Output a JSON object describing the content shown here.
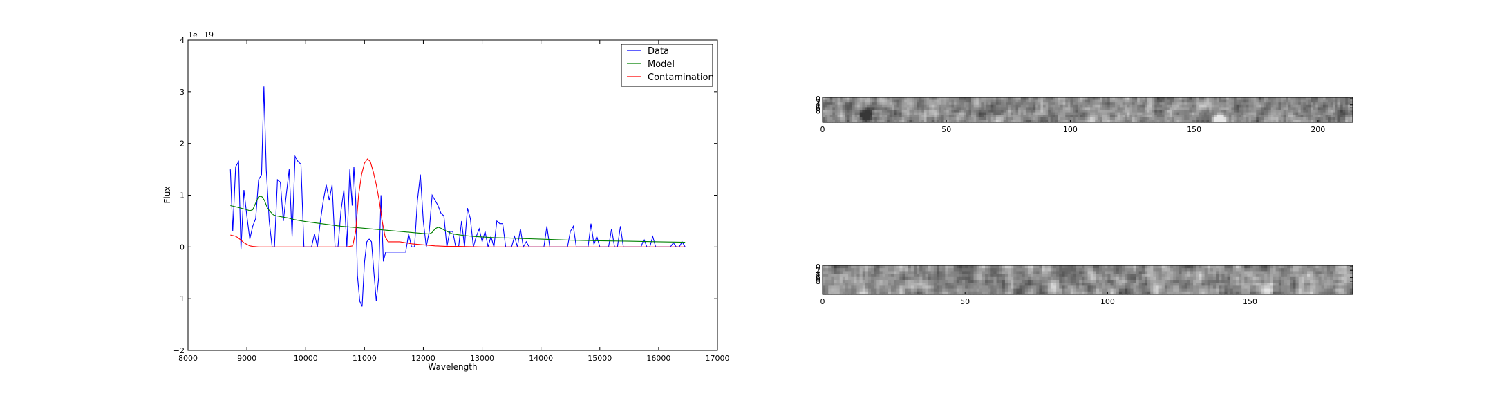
{
  "chart_data": [
    {
      "type": "line",
      "xlabel": "Wavelength",
      "ylabel": "Flux",
      "offset_text": "1e−19",
      "xlim": [
        8000,
        17000
      ],
      "ylim": [
        -2,
        4
      ],
      "x_ticks": [
        8000,
        9000,
        10000,
        11000,
        12000,
        13000,
        14000,
        15000,
        16000,
        17000
      ],
      "y_ticks": [
        -2,
        -1,
        0,
        1,
        2,
        3,
        4
      ],
      "y_tick_labels": [
        "−2",
        "−1",
        "0",
        "1",
        "2",
        "3",
        "4"
      ],
      "grid": false,
      "legend_position": "top-right",
      "series": [
        {
          "name": "Data",
          "color": "#0000ff",
          "points": [
            [
              8720,
              1.5
            ],
            [
              8760,
              0.3
            ],
            [
              8810,
              1.55
            ],
            [
              8860,
              1.65
            ],
            [
              8900,
              -0.05
            ],
            [
              8950,
              1.1
            ],
            [
              9000,
              0.6
            ],
            [
              9050,
              0.15
            ],
            [
              9100,
              0.4
            ],
            [
              9150,
              0.55
            ],
            [
              9200,
              1.3
            ],
            [
              9250,
              1.4
            ],
            [
              9290,
              3.1
            ],
            [
              9330,
              1.5
            ],
            [
              9380,
              0.5
            ],
            [
              9430,
              0.0
            ],
            [
              9470,
              0.0
            ],
            [
              9520,
              1.3
            ],
            [
              9570,
              1.25
            ],
            [
              9620,
              0.5
            ],
            [
              9670,
              1.0
            ],
            [
              9720,
              1.5
            ],
            [
              9770,
              0.2
            ],
            [
              9820,
              1.75
            ],
            [
              9870,
              1.65
            ],
            [
              9920,
              1.6
            ],
            [
              9970,
              0.0
            ],
            [
              10050,
              0.0
            ],
            [
              10100,
              0.0
            ],
            [
              10150,
              0.25
            ],
            [
              10200,
              0.0
            ],
            [
              10250,
              0.5
            ],
            [
              10300,
              0.9
            ],
            [
              10350,
              1.2
            ],
            [
              10400,
              0.9
            ],
            [
              10450,
              1.2
            ],
            [
              10500,
              0.0
            ],
            [
              10550,
              0.0
            ],
            [
              10600,
              0.7
            ],
            [
              10650,
              1.1
            ],
            [
              10700,
              0.0
            ],
            [
              10750,
              1.5
            ],
            [
              10790,
              0.8
            ],
            [
              10820,
              1.55
            ],
            [
              10850,
              0.9
            ],
            [
              10880,
              -0.55
            ],
            [
              10920,
              -1.05
            ],
            [
              10960,
              -1.15
            ],
            [
              11000,
              -0.3
            ],
            [
              11040,
              0.1
            ],
            [
              11080,
              0.15
            ],
            [
              11120,
              0.1
            ],
            [
              11160,
              -0.5
            ],
            [
              11200,
              -1.05
            ],
            [
              11240,
              -0.6
            ],
            [
              11280,
              1.0
            ],
            [
              11320,
              -0.28
            ],
            [
              11360,
              -0.1
            ],
            [
              11400,
              -0.1
            ],
            [
              11500,
              -0.1
            ],
            [
              11600,
              -0.1
            ],
            [
              11700,
              -0.1
            ],
            [
              11750,
              0.25
            ],
            [
              11800,
              0.0
            ],
            [
              11850,
              0.0
            ],
            [
              11900,
              0.9
            ],
            [
              11950,
              1.4
            ],
            [
              12000,
              0.5
            ],
            [
              12050,
              0.0
            ],
            [
              12100,
              0.3
            ],
            [
              12150,
              1.0
            ],
            [
              12200,
              0.9
            ],
            [
              12250,
              0.8
            ],
            [
              12300,
              0.65
            ],
            [
              12350,
              0.6
            ],
            [
              12400,
              0.0
            ],
            [
              12450,
              0.3
            ],
            [
              12500,
              0.3
            ],
            [
              12550,
              0.0
            ],
            [
              12600,
              0.0
            ],
            [
              12650,
              0.5
            ],
            [
              12700,
              0.0
            ],
            [
              12750,
              0.75
            ],
            [
              12800,
              0.55
            ],
            [
              12850,
              0.0
            ],
            [
              12900,
              0.2
            ],
            [
              12950,
              0.35
            ],
            [
              13000,
              0.1
            ],
            [
              13050,
              0.3
            ],
            [
              13100,
              0.0
            ],
            [
              13150,
              0.2
            ],
            [
              13200,
              0.0
            ],
            [
              13250,
              0.5
            ],
            [
              13300,
              0.45
            ],
            [
              13350,
              0.45
            ],
            [
              13400,
              0.0
            ],
            [
              13450,
              0.0
            ],
            [
              13500,
              0.0
            ],
            [
              13550,
              0.2
            ],
            [
              13600,
              0.0
            ],
            [
              13650,
              0.35
            ],
            [
              13700,
              0.0
            ],
            [
              13750,
              0.1
            ],
            [
              13800,
              0.0
            ],
            [
              13900,
              0.0
            ],
            [
              14000,
              0.0
            ],
            [
              14050,
              0.0
            ],
            [
              14100,
              0.4
            ],
            [
              14150,
              0.0
            ],
            [
              14300,
              0.0
            ],
            [
              14450,
              0.0
            ],
            [
              14500,
              0.3
            ],
            [
              14550,
              0.4
            ],
            [
              14600,
              0.0
            ],
            [
              14700,
              0.0
            ],
            [
              14750,
              0.0
            ],
            [
              14800,
              0.0
            ],
            [
              14850,
              0.45
            ],
            [
              14900,
              0.05
            ],
            [
              14950,
              0.2
            ],
            [
              15000,
              0.0
            ],
            [
              15100,
              0.0
            ],
            [
              15150,
              0.0
            ],
            [
              15200,
              0.35
            ],
            [
              15250,
              0.0
            ],
            [
              15300,
              0.0
            ],
            [
              15350,
              0.4
            ],
            [
              15400,
              0.0
            ],
            [
              15500,
              0.0
            ],
            [
              15600,
              0.0
            ],
            [
              15700,
              0.0
            ],
            [
              15750,
              0.15
            ],
            [
              15800,
              0.0
            ],
            [
              15850,
              0.0
            ],
            [
              15900,
              0.2
            ],
            [
              15950,
              0.0
            ],
            [
              16000,
              0.0
            ],
            [
              16100,
              0.0
            ],
            [
              16200,
              0.0
            ],
            [
              16250,
              0.08
            ],
            [
              16300,
              0.0
            ],
            [
              16350,
              0.0
            ],
            [
              16400,
              0.1
            ],
            [
              16450,
              0.0
            ]
          ]
        },
        {
          "name": "Model",
          "color": "#008000",
          "points": [
            [
              8720,
              0.8
            ],
            [
              8800,
              0.78
            ],
            [
              8900,
              0.75
            ],
            [
              9000,
              0.72
            ],
            [
              9050,
              0.7
            ],
            [
              9100,
              0.72
            ],
            [
              9150,
              0.85
            ],
            [
              9200,
              0.97
            ],
            [
              9250,
              0.98
            ],
            [
              9300,
              0.9
            ],
            [
              9350,
              0.75
            ],
            [
              9400,
              0.68
            ],
            [
              9450,
              0.62
            ],
            [
              9500,
              0.6
            ],
            [
              9600,
              0.58
            ],
            [
              9700,
              0.56
            ],
            [
              9800,
              0.53
            ],
            [
              9900,
              0.51
            ],
            [
              10000,
              0.49
            ],
            [
              10200,
              0.46
            ],
            [
              10400,
              0.43
            ],
            [
              10600,
              0.4
            ],
            [
              10800,
              0.38
            ],
            [
              11000,
              0.36
            ],
            [
              11200,
              0.34
            ],
            [
              11400,
              0.32
            ],
            [
              11600,
              0.3
            ],
            [
              11800,
              0.28
            ],
            [
              12000,
              0.26
            ],
            [
              12100,
              0.25
            ],
            [
              12150,
              0.28
            ],
            [
              12200,
              0.35
            ],
            [
              12250,
              0.38
            ],
            [
              12300,
              0.36
            ],
            [
              12350,
              0.33
            ],
            [
              12400,
              0.3
            ],
            [
              12500,
              0.25
            ],
            [
              12700,
              0.22
            ],
            [
              12900,
              0.2
            ],
            [
              13200,
              0.18
            ],
            [
              13500,
              0.17
            ],
            [
              14000,
              0.15
            ],
            [
              14500,
              0.13
            ],
            [
              15000,
              0.12
            ],
            [
              15500,
              0.11
            ],
            [
              16000,
              0.1
            ],
            [
              16450,
              0.09
            ]
          ]
        },
        {
          "name": "Contamination",
          "color": "#ff0000",
          "points": [
            [
              8720,
              0.23
            ],
            [
              8800,
              0.21
            ],
            [
              8850,
              0.18
            ],
            [
              8900,
              0.13
            ],
            [
              8950,
              0.08
            ],
            [
              9000,
              0.05
            ],
            [
              9050,
              0.02
            ],
            [
              9100,
              0.01
            ],
            [
              9200,
              0.0
            ],
            [
              9400,
              0.0
            ],
            [
              9600,
              0.0
            ],
            [
              9800,
              0.0
            ],
            [
              10000,
              0.0
            ],
            [
              10200,
              0.0
            ],
            [
              10400,
              0.0
            ],
            [
              10600,
              0.0
            ],
            [
              10700,
              0.0
            ],
            [
              10800,
              0.02
            ],
            [
              10850,
              0.3
            ],
            [
              10900,
              1.0
            ],
            [
              10950,
              1.4
            ],
            [
              11000,
              1.62
            ],
            [
              11050,
              1.7
            ],
            [
              11100,
              1.65
            ],
            [
              11150,
              1.45
            ],
            [
              11200,
              1.2
            ],
            [
              11250,
              0.9
            ],
            [
              11300,
              0.5
            ],
            [
              11350,
              0.2
            ],
            [
              11400,
              0.1
            ],
            [
              11500,
              0.1
            ],
            [
              11600,
              0.1
            ],
            [
              11700,
              0.08
            ],
            [
              11800,
              0.06
            ],
            [
              12000,
              0.04
            ],
            [
              12200,
              0.02
            ],
            [
              12400,
              0.01
            ],
            [
              12600,
              0.01
            ],
            [
              13000,
              0.0
            ],
            [
              14000,
              0.0
            ],
            [
              15000,
              0.0
            ],
            [
              16000,
              0.0
            ],
            [
              16450,
              0.0
            ]
          ]
        }
      ]
    },
    {
      "type": "heatmap",
      "colormap": "gray",
      "x_ticks": [
        0,
        50,
        100,
        150,
        200
      ],
      "y_tick_labels": [
        "0",
        "2",
        "4",
        "6",
        "8"
      ],
      "xlim": [
        0,
        214
      ],
      "ylim": [
        0,
        10
      ],
      "seed": 7
    },
    {
      "type": "heatmap",
      "colormap": "gray",
      "x_ticks": [
        0,
        50,
        100,
        150
      ],
      "y_tick_labels": [
        "0",
        "2",
        "4",
        "6",
        "8"
      ],
      "xlim": [
        0,
        186
      ],
      "ylim": [
        0,
        10
      ],
      "seed": 13
    }
  ]
}
